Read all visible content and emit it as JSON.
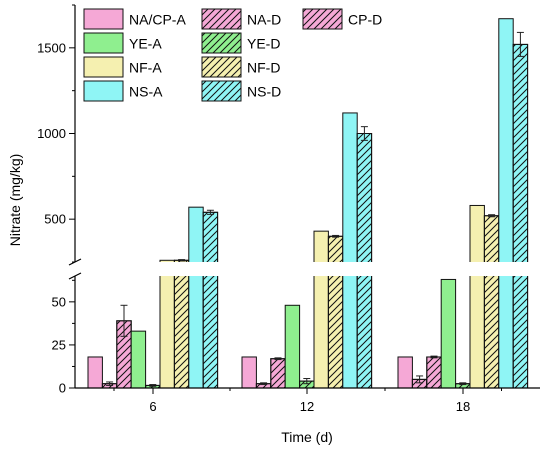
{
  "chart_data": {
    "type": "bar",
    "xlabel": "Time (d)",
    "ylabel": "Nitrate (mg/kg)",
    "categories": [
      "6",
      "12",
      "18"
    ],
    "y_axis_break": {
      "lower_range": [
        0,
        65
      ],
      "upper_range": [
        250,
        1750
      ]
    },
    "yticks_lower": [
      0,
      25,
      50
    ],
    "yticks_upper": [
      500,
      1000,
      1500
    ],
    "tick_labels": {
      "y_lower": [
        "0",
        "25",
        "50"
      ],
      "y_upper": [
        "500",
        "1000",
        "1500"
      ],
      "x": [
        "6",
        "12",
        "18"
      ]
    },
    "legend_position": "top",
    "series": [
      {
        "name": "NA/CP-A",
        "color": "#f5a8d6",
        "hatch": false,
        "values": [
          18,
          18,
          18
        ],
        "errors": [
          0,
          0,
          0
        ]
      },
      {
        "name": "NA-D",
        "color": "#f5a8d6",
        "hatch": true,
        "values": [
          2.5,
          2.5,
          5
        ],
        "errors": [
          1,
          0.5,
          2
        ]
      },
      {
        "name": "CP-D",
        "color": "#f5a8d6",
        "hatch": true,
        "values": [
          39,
          17,
          18
        ],
        "errors": [
          9,
          0.5,
          0.5
        ]
      },
      {
        "name": "YE-A",
        "color": "#8fef8f",
        "hatch": false,
        "values": [
          33,
          48,
          63
        ],
        "errors": [
          0,
          0,
          0
        ]
      },
      {
        "name": "YE-D",
        "color": "#8fef8f",
        "hatch": true,
        "values": [
          1.5,
          4,
          2.5
        ],
        "errors": [
          0.5,
          1.5,
          0.5
        ]
      },
      {
        "name": "NF-A",
        "color": "#f5f0b0",
        "hatch": false,
        "values": [
          260,
          430,
          580
        ],
        "errors": [
          0,
          0,
          0
        ]
      },
      {
        "name": "NF-D",
        "color": "#f5f0b0",
        "hatch": true,
        "values": [
          260,
          400,
          520
        ],
        "errors": [
          4,
          5,
          6
        ]
      },
      {
        "name": "NS-A",
        "color": "#8ff5f5",
        "hatch": false,
        "values": [
          570,
          1120,
          1670
        ],
        "errors": [
          0,
          0,
          0
        ]
      },
      {
        "name": "NS-D",
        "color": "#8ff5f5",
        "hatch": true,
        "values": [
          540,
          1000,
          1520
        ],
        "errors": [
          12,
          40,
          70
        ]
      }
    ]
  }
}
